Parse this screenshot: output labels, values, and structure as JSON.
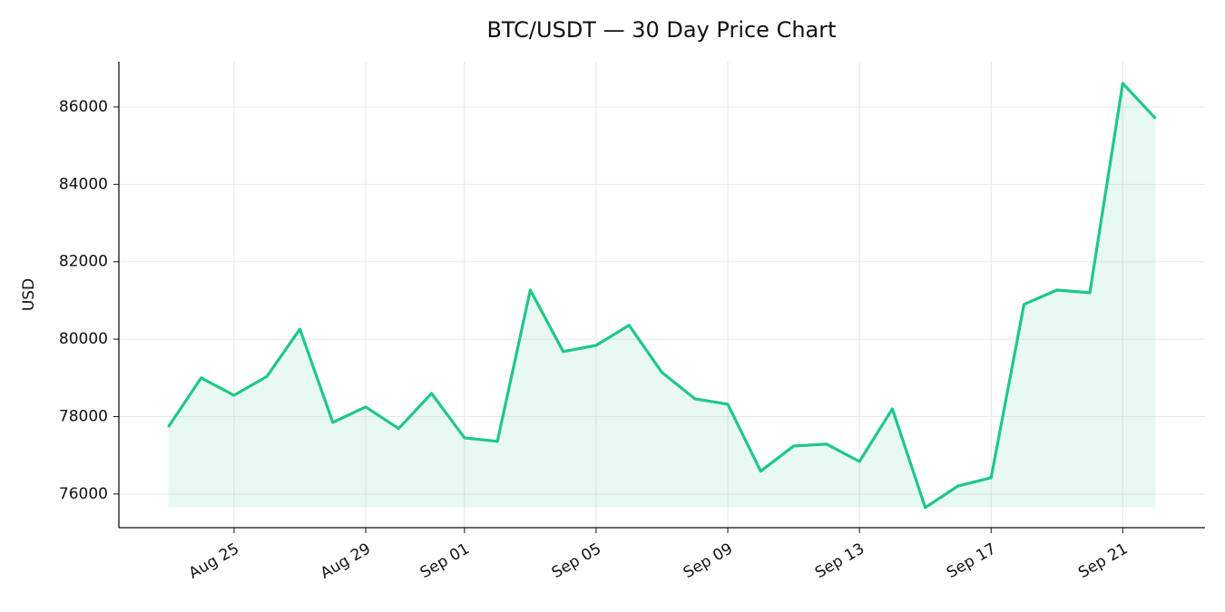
{
  "chart_data": {
    "type": "line",
    "title": "BTC/USDT — 30 Day Price Chart",
    "y_label": "USD",
    "x": [
      "Aug 23",
      "Aug 24",
      "Aug 25",
      "Aug 26",
      "Aug 27",
      "Aug 28",
      "Aug 29",
      "Aug 30",
      "Aug 31",
      "Sep 01",
      "Sep 02",
      "Sep 03",
      "Sep 04",
      "Sep 05",
      "Sep 06",
      "Sep 07",
      "Sep 08",
      "Sep 09",
      "Sep 10",
      "Sep 11",
      "Sep 12",
      "Sep 13",
      "Sep 14",
      "Sep 15",
      "Sep 16",
      "Sep 17",
      "Sep 18",
      "Sep 19",
      "Sep 20",
      "Sep 21",
      "Sep 22"
    ],
    "series": [
      {
        "name": "BTC/USDT",
        "color": "#1fc887",
        "values": [
          77730,
          79000,
          78550,
          79040,
          80260,
          77850,
          78250,
          77690,
          78600,
          77450,
          77360,
          81270,
          79680,
          79840,
          80360,
          79140,
          78460,
          78320,
          76590,
          77240,
          77290,
          76840,
          78200,
          75650,
          76210,
          76420,
          80900,
          81270,
          81200,
          86610,
          85700
        ]
      }
    ],
    "xticks": [
      "Aug 25",
      "Aug 29",
      "Sep 01",
      "Sep 05",
      "Sep 09",
      "Sep 13",
      "Sep 17",
      "Sep 21"
    ],
    "ylim": [
      75130,
      87170
    ],
    "yticks": [
      76000,
      78000,
      80000,
      82000,
      84000,
      86000
    ],
    "grid": true,
    "fill": true
  }
}
